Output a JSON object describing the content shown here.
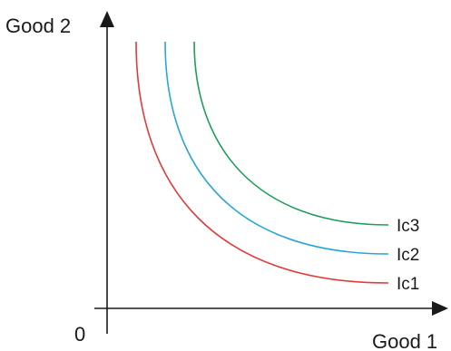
{
  "axes": {
    "y_label": "Good 2",
    "x_label": "Good 1",
    "origin_label": "0",
    "color": "#1a1a1a"
  },
  "curves": [
    {
      "label": "Ic1",
      "color": "#e03a3a"
    },
    {
      "label": "Ic2",
      "color": "#2aa6d6"
    },
    {
      "label": "Ic3",
      "color": "#1f9e5a"
    }
  ]
}
